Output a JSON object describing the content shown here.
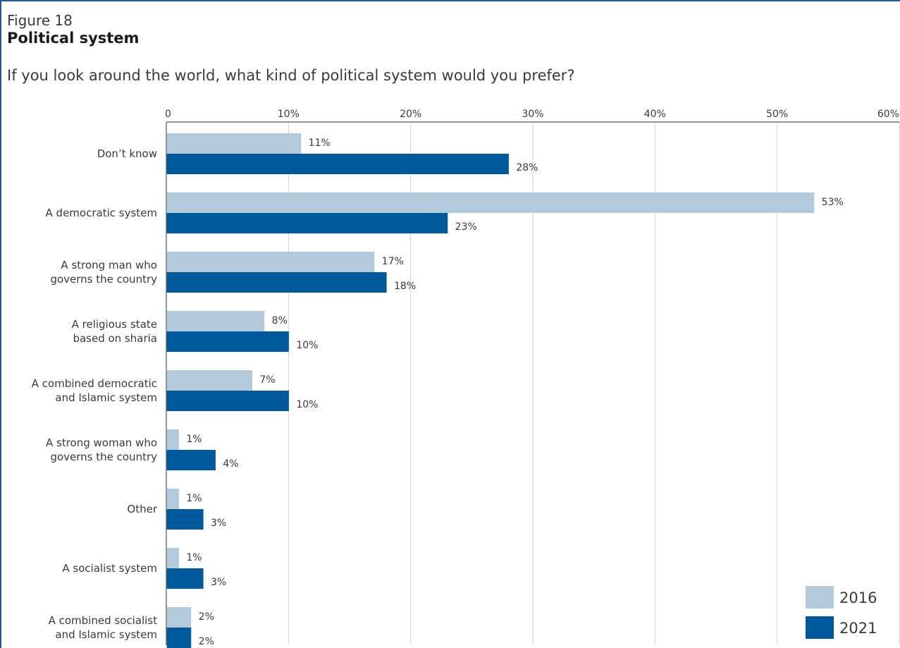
{
  "figure": {
    "number": "Figure 18",
    "title": "Political system",
    "subtitle": "If you look around the world, what kind of political system would you prefer?"
  },
  "colors": {
    "light": "#b3cadd",
    "dark": "#00599a",
    "grid": "#cfcfcf",
    "axis": "#555555"
  },
  "chart_data": {
    "type": "bar",
    "orientation": "horizontal",
    "xlim": [
      0,
      60
    ],
    "x_ticks": [
      {
        "value": 0,
        "label": "0"
      },
      {
        "value": 10,
        "label": "10%"
      },
      {
        "value": 20,
        "label": "20%"
      },
      {
        "value": 30,
        "label": "30%"
      },
      {
        "value": 40,
        "label": "40%"
      },
      {
        "value": 50,
        "label": "50%"
      },
      {
        "value": 60,
        "label": "60%"
      }
    ],
    "grid": true,
    "legend_position": "bottom-right",
    "categories": [
      [
        "Don’t know"
      ],
      [
        "A democratic system"
      ],
      [
        "A strong man who",
        "governs the country"
      ],
      [
        "A religious state",
        "based on sharia"
      ],
      [
        "A combined democratic",
        "and Islamic system"
      ],
      [
        "A strong woman who",
        "governs the country"
      ],
      [
        "Other"
      ],
      [
        "A socialist system"
      ],
      [
        "A combined socialist",
        "and Islamic system"
      ]
    ],
    "series": [
      {
        "name": "2016",
        "color": "#b3cadd",
        "values": [
          11,
          53,
          17,
          8,
          7,
          1,
          1,
          1,
          2
        ],
        "labels": [
          "11%",
          "53%",
          "17%",
          "8%",
          "7%",
          "1%",
          "1%",
          "1%",
          "2%"
        ]
      },
      {
        "name": "2021",
        "color": "#00599a",
        "values": [
          28,
          23,
          18,
          10,
          10,
          4,
          3,
          3,
          2
        ],
        "labels": [
          "28%",
          "23%",
          "18%",
          "10%",
          "10%",
          "4%",
          "3%",
          "3%",
          "2%"
        ]
      }
    ]
  }
}
